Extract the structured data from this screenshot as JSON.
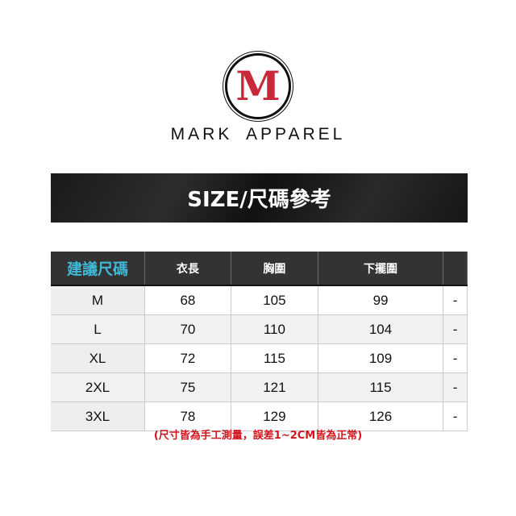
{
  "brand": {
    "logo_letter": "M",
    "name": "MARK APPAREL",
    "accent_color": "#c8283a"
  },
  "banner": {
    "title": "SIZE/尺碼參考"
  },
  "table": {
    "headers": [
      "建議尺碼",
      "衣長",
      "胸圍",
      "下擺圍",
      ""
    ],
    "rows": [
      [
        "M",
        "68",
        "105",
        "99",
        "-"
      ],
      [
        "L",
        "70",
        "110",
        "104",
        "-"
      ],
      [
        "XL",
        "72",
        "115",
        "109",
        "-"
      ],
      [
        "2XL",
        "75",
        "121",
        "115",
        "-"
      ],
      [
        "3XL",
        "78",
        "129",
        "126",
        "-"
      ]
    ]
  },
  "note": "(尺寸皆為手工測量，誤差1~2CM皆為正常)"
}
